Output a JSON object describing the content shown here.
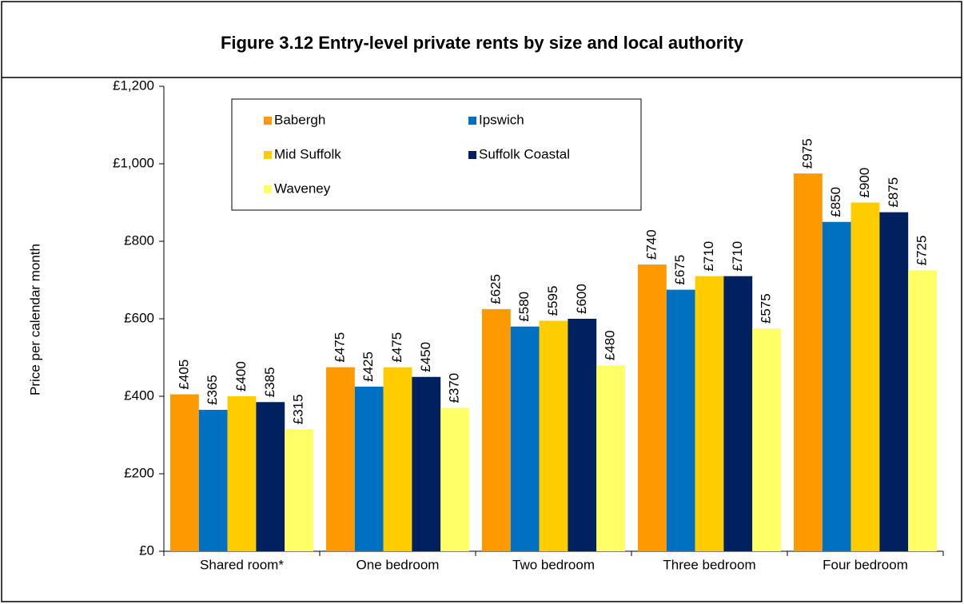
{
  "chart_data": {
    "type": "bar",
    "title": "Figure 3.12 Entry-level private rents by size and local authority",
    "ylabel": "Price per calendar month",
    "categories": [
      "Shared room*",
      "One bedroom",
      "Two bedroom",
      "Three bedroom",
      "Four bedroom"
    ],
    "series": [
      {
        "name": "Babergh",
        "color": "#FF9900",
        "values": [
          405,
          475,
          625,
          740,
          975
        ],
        "value_labels": [
          "£405",
          "£475",
          "£625",
          "£740",
          "£975"
        ]
      },
      {
        "name": "Ipswich",
        "color": "#0070C0",
        "values": [
          365,
          425,
          580,
          675,
          850
        ],
        "value_labels": [
          "£365",
          "£425",
          "£580",
          "£675",
          "£850"
        ]
      },
      {
        "name": "Mid Suffolk",
        "color": "#FFCC00",
        "values": [
          400,
          475,
          595,
          710,
          900
        ],
        "value_labels": [
          "£400",
          "£475",
          "£595",
          "£710",
          "£900"
        ]
      },
      {
        "name": "Suffolk Coastal",
        "color": "#002060",
        "values": [
          385,
          450,
          600,
          710,
          875
        ],
        "value_labels": [
          "£385",
          "£450",
          "£600",
          "£710",
          "£875"
        ]
      },
      {
        "name": "Waveney",
        "color": "#FFFF66",
        "values": [
          315,
          370,
          480,
          575,
          725
        ],
        "value_labels": [
          "£315",
          "£370",
          "£480",
          "£575",
          "£725"
        ]
      }
    ],
    "ylim": [
      0,
      1200
    ],
    "yticks": [
      {
        "value": 0,
        "label": "£0"
      },
      {
        "value": 200,
        "label": "£200"
      },
      {
        "value": 400,
        "label": "£400"
      },
      {
        "value": 600,
        "label": "£600"
      },
      {
        "value": 800,
        "label": "£800"
      },
      {
        "value": 1000,
        "label": "£1,000"
      },
      {
        "value": 1200,
        "label": "£1,200"
      }
    ],
    "grid": false,
    "legend": "top-left"
  }
}
